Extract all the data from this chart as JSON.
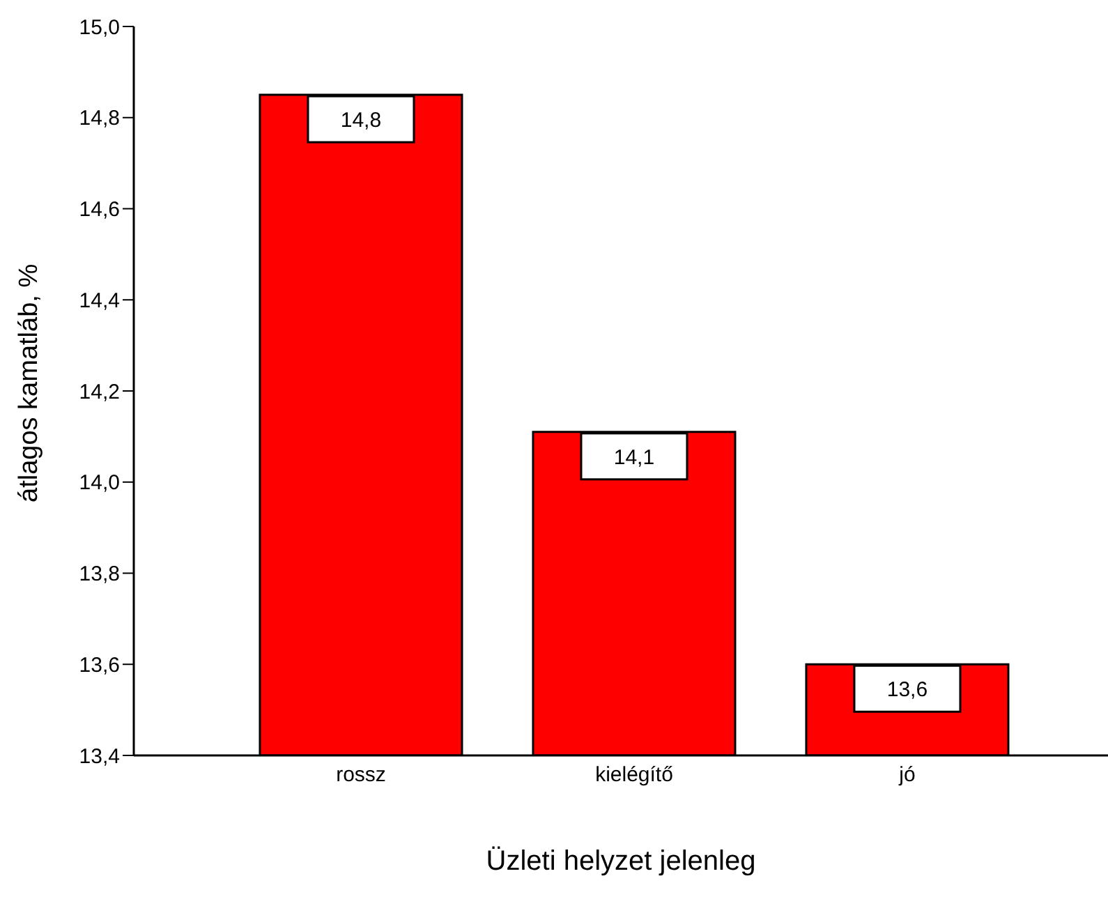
{
  "chart_data": {
    "type": "bar",
    "xlabel": "Üzleti helyzet jelenleg",
    "ylabel": "átlagos kamatláb, %",
    "categories": [
      "rossz",
      "kielégítő",
      "jó"
    ],
    "values": [
      14.85,
      14.11,
      13.6
    ],
    "value_labels": [
      "14,8",
      "14,1",
      "13,6"
    ],
    "color": "#ff0000",
    "ylim": [
      13.4,
      15.0
    ],
    "yticks": [
      {
        "value": 13.4,
        "label": "13,4"
      },
      {
        "value": 13.6,
        "label": "13,6"
      },
      {
        "value": 13.8,
        "label": "13,8"
      },
      {
        "value": 14.0,
        "label": "14,0"
      },
      {
        "value": 14.2,
        "label": "14,2"
      },
      {
        "value": 14.4,
        "label": "14,4"
      },
      {
        "value": 14.6,
        "label": "14,6"
      },
      {
        "value": 14.8,
        "label": "14,8"
      },
      {
        "value": 15.0,
        "label": "15,0"
      }
    ],
    "grid": false,
    "legend": false
  }
}
